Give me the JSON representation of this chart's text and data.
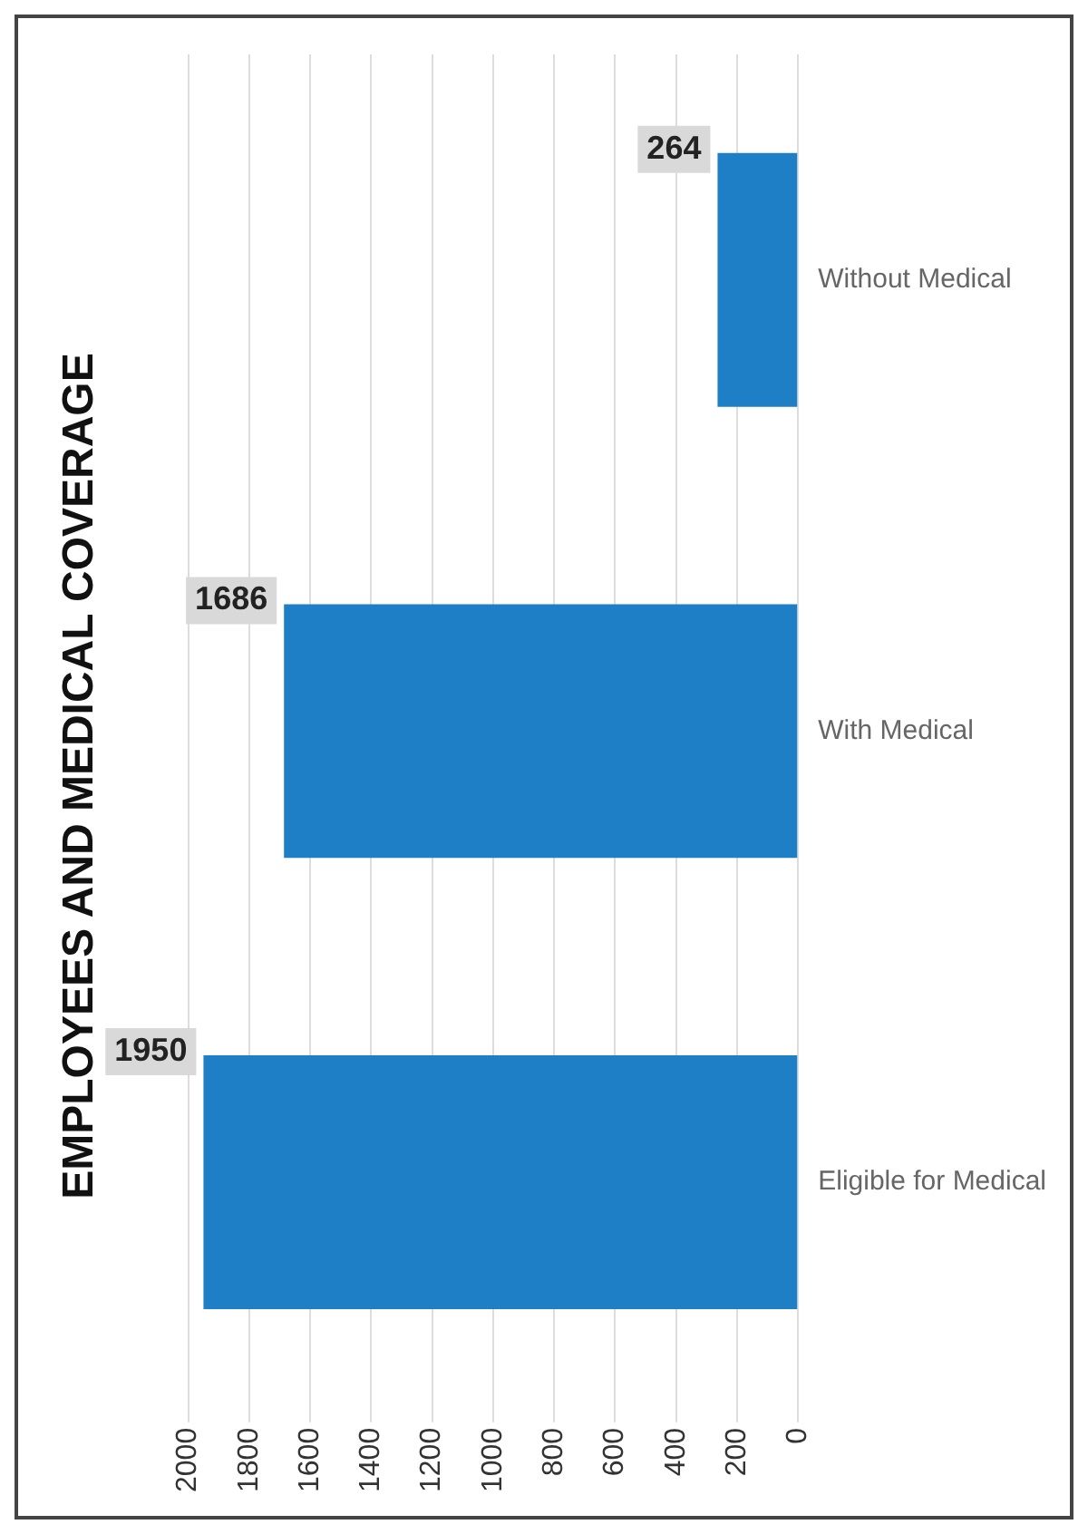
{
  "chart_data": {
    "type": "bar",
    "title": "EMPLOYEES AND MEDICAL COVERAGE",
    "orientation": "horizontal",
    "categories": [
      "Without Medical",
      "With Medical",
      "Eligible for Medical"
    ],
    "values": [
      264,
      1686,
      1950
    ],
    "color": "#1f7fc6",
    "xlim": [
      2000,
      0
    ],
    "xticks": [
      0,
      200,
      400,
      600,
      800,
      1000,
      1200,
      1400,
      1600,
      1800,
      2000
    ],
    "grid": "x",
    "data_labels": true
  }
}
